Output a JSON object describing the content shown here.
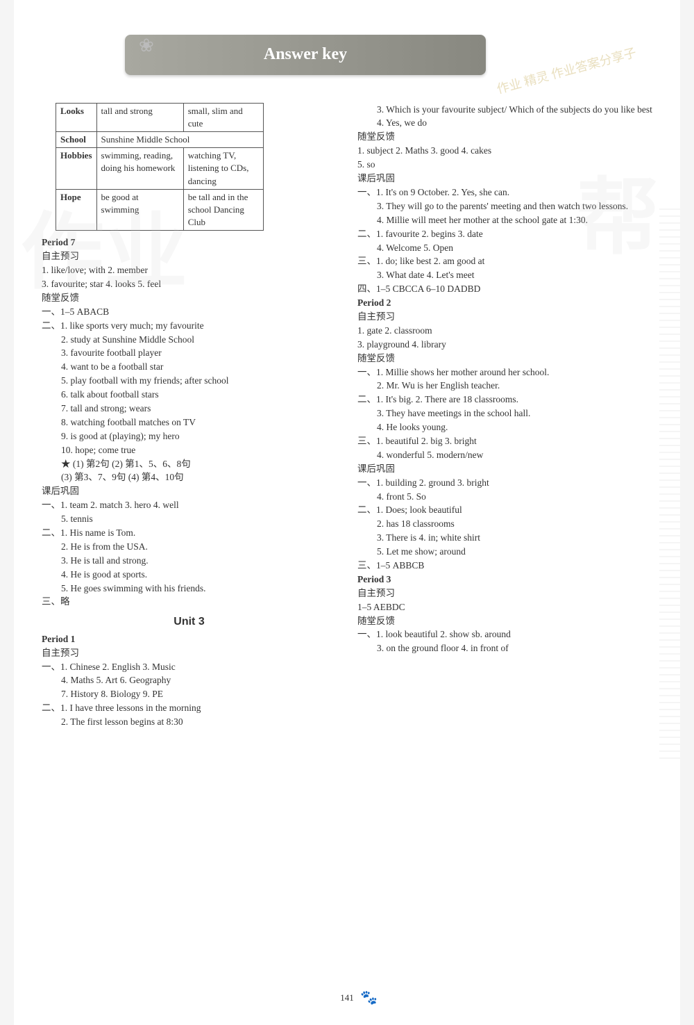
{
  "header": "Answer key",
  "watermark_corner": "作业 精灵 作业答案分享子",
  "corner_icon": "❀",
  "ghost_left": "作业",
  "ghost_right": "帮",
  "page_number": "141",
  "table": {
    "rows": [
      {
        "h": "Looks",
        "c1": "tall and strong",
        "c2": "small, slim and cute"
      },
      {
        "h": "School",
        "c1": "Sunshine Middle School",
        "c2": ""
      },
      {
        "h": "Hobbies",
        "c1": "swimming, reading, doing his homework",
        "c2": "watching TV, listening to CDs, dancing"
      },
      {
        "h": "Hope",
        "c1": "be good at swimming",
        "c2": "be tall and in the school Dancing Club"
      }
    ]
  },
  "left": {
    "period7": "Period 7",
    "zizhu": "自主预习",
    "zizhu_lines": [
      "1. like/love; with  2. member",
      "3. favourite; star  4. looks  5. feel"
    ],
    "suitang": "随堂反馈",
    "st1": "一、1–5 ABACB",
    "st2_lines": [
      "二、1. like sports very much; my favourite",
      "2. study at Sunshine Middle School",
      "3. favourite football player",
      "4. want to be a football star",
      "5. play football with my friends; after school",
      "6. talk about football stars",
      "7. tall and strong; wears",
      "8. watching football matches on TV",
      "9. is good at (playing); my hero",
      "10. hope; come true",
      "★ (1) 第2句 (2) 第1、5、6、8句",
      "(3) 第3、7、9句 (4) 第4、10句"
    ],
    "kehou": "课后巩固",
    "kh_lines": [
      "一、1. team  2. match  3. hero  4. well",
      "5. tennis",
      "二、1. His name is Tom.",
      "2. He is from the USA.",
      "3. He is tall and strong.",
      "4. He is good at sports.",
      "5. He goes swimming with his friends.",
      "三、略"
    ],
    "unit3": "Unit 3",
    "u3_p1": "Period 1",
    "u3_zizhu": "自主预习",
    "u3_zz_lines": [
      "一、1. Chinese   2. English  3. Music",
      "4. Maths  5. Art  6. Geography",
      "7. History  8. Biology   9. PE",
      "二、1. I have three lessons in the morning",
      "2. The first lesson begins at 8:30"
    ]
  },
  "right": {
    "top_lines": [
      "3. Which is your favourite subject/ Which of the subjects do you like best",
      "4. Yes, we do"
    ],
    "suitang": "随堂反馈",
    "st_lines": [
      "1. subject  2. Maths  3. good  4. cakes",
      "5. so"
    ],
    "kehou": "课后巩固",
    "kh_lines": [
      "一、1. It's on 9 October.  2. Yes, she can.",
      "3. They will go to the parents' meeting and then watch two lessons.",
      "4. Millie will meet her mother at the school gate at 1:30.",
      "二、1. favourite  2. begins  3. date",
      "4. Welcome  5. Open",
      "三、1. do; like best  2. am good at",
      "3. What date   4. Let's meet",
      "四、1–5 CBCCA   6–10 DADBD"
    ],
    "p2": "Period 2",
    "p2_zizhu": "自主预习",
    "p2_zz_lines": [
      "1. gate                  2. classroom",
      "3. playground        4. library"
    ],
    "p2_suitang": "随堂反馈",
    "p2_st_lines": [
      "一、1. Millie shows her mother around her school.",
      "2. Mr. Wu is her English teacher.",
      "二、1. It's big.  2. There are 18 classrooms.",
      "3. They have meetings in the school hall.",
      "4. He looks young.",
      "三、1. beautiful   2. big    3. bright",
      "4. wonderful  5. modern/new"
    ],
    "p2_kehou": "课后巩固",
    "p2_kh_lines": [
      "一、1. building    2. ground   3. bright",
      "4. front        5. So",
      "二、1. Does; look beautiful",
      "2. has 18 classrooms",
      "3. There is    4. in; white shirt",
      "5. Let me show; around",
      "三、1–5 ABBCB"
    ],
    "p3": "Period 3",
    "p3_zizhu": "自主预习",
    "p3_zz_lines": [
      "1–5 AEBDC"
    ],
    "p3_suitang": "随堂反馈",
    "p3_st_lines": [
      "一、1. look beautiful    2. show sb. around",
      "3. on the ground floor  4. in front of"
    ]
  }
}
